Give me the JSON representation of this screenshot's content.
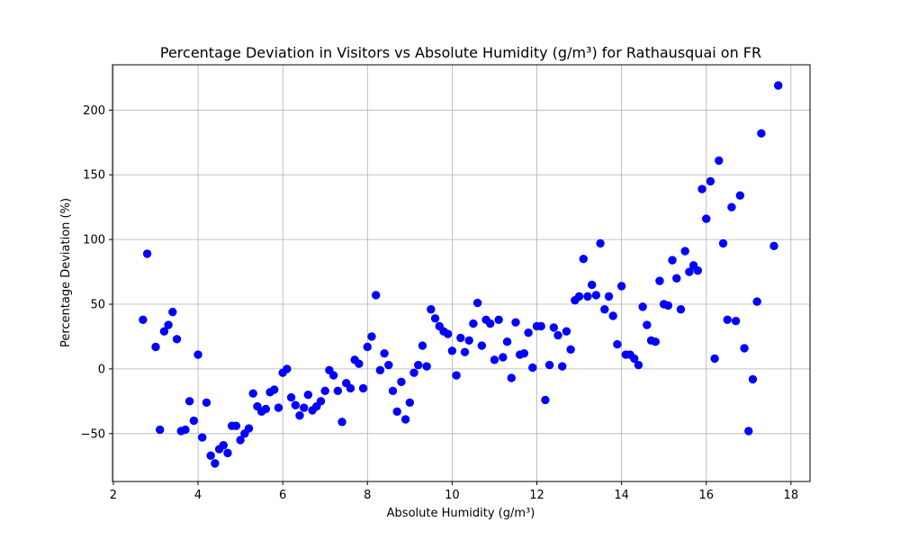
{
  "chart_data": {
    "type": "scatter",
    "title": "Percentage Deviation in Visitors vs Absolute Humidity (g/m³) for Rathausquai on FR",
    "xlabel": "Absolute Humidity (g/m³)",
    "ylabel": "Percentage Deviation (%)",
    "xlim": [
      1.98,
      18.45
    ],
    "ylim": [
      -87,
      235
    ],
    "xticks": [
      2,
      4,
      6,
      8,
      10,
      12,
      14,
      16,
      18
    ],
    "yticks": [
      -50,
      0,
      50,
      100,
      150,
      200
    ],
    "grid": true,
    "point_color": "#0000ff",
    "points": [
      [
        2.7,
        38
      ],
      [
        2.8,
        89
      ],
      [
        3.0,
        17
      ],
      [
        3.1,
        -47
      ],
      [
        3.2,
        29
      ],
      [
        3.3,
        34
      ],
      [
        3.4,
        44
      ],
      [
        3.5,
        23
      ],
      [
        3.6,
        -48
      ],
      [
        3.7,
        -47
      ],
      [
        3.8,
        -25
      ],
      [
        3.9,
        -40
      ],
      [
        4.0,
        11
      ],
      [
        4.1,
        -53
      ],
      [
        4.2,
        -26
      ],
      [
        4.3,
        -67
      ],
      [
        4.4,
        -73
      ],
      [
        4.5,
        -62
      ],
      [
        4.6,
        -59
      ],
      [
        4.7,
        -65
      ],
      [
        4.8,
        -44
      ],
      [
        4.9,
        -44
      ],
      [
        5.0,
        -55
      ],
      [
        5.1,
        -50
      ],
      [
        5.2,
        -46
      ],
      [
        5.3,
        -19
      ],
      [
        5.4,
        -29
      ],
      [
        5.5,
        -33
      ],
      [
        5.6,
        -31
      ],
      [
        5.7,
        -18
      ],
      [
        5.8,
        -16
      ],
      [
        5.9,
        -30
      ],
      [
        6.0,
        -3
      ],
      [
        6.1,
        0
      ],
      [
        6.2,
        -22
      ],
      [
        6.3,
        -28
      ],
      [
        6.4,
        -36
      ],
      [
        6.5,
        -30
      ],
      [
        6.6,
        -20
      ],
      [
        6.7,
        -32
      ],
      [
        6.8,
        -29
      ],
      [
        6.9,
        -25
      ],
      [
        7.0,
        -17
      ],
      [
        7.1,
        -1
      ],
      [
        7.2,
        -5
      ],
      [
        7.3,
        -17
      ],
      [
        7.4,
        -41
      ],
      [
        7.5,
        -11
      ],
      [
        7.6,
        -15
      ],
      [
        7.7,
        7
      ],
      [
        7.8,
        4
      ],
      [
        7.9,
        -15
      ],
      [
        8.0,
        17
      ],
      [
        8.1,
        25
      ],
      [
        8.2,
        57
      ],
      [
        8.3,
        -1
      ],
      [
        8.4,
        12
      ],
      [
        8.5,
        3
      ],
      [
        8.6,
        -17
      ],
      [
        8.7,
        -33
      ],
      [
        8.8,
        -10
      ],
      [
        8.9,
        -39
      ],
      [
        9.0,
        -26
      ],
      [
        9.1,
        -3
      ],
      [
        9.2,
        3
      ],
      [
        9.3,
        18
      ],
      [
        9.4,
        2
      ],
      [
        9.5,
        46
      ],
      [
        9.6,
        39
      ],
      [
        9.7,
        33
      ],
      [
        9.8,
        29
      ],
      [
        9.9,
        27
      ],
      [
        10.0,
        14
      ],
      [
        10.1,
        -5
      ],
      [
        10.2,
        24
      ],
      [
        10.3,
        13
      ],
      [
        10.4,
        22
      ],
      [
        10.5,
        35
      ],
      [
        10.6,
        51
      ],
      [
        10.7,
        18
      ],
      [
        10.8,
        38
      ],
      [
        10.9,
        35
      ],
      [
        11.0,
        7
      ],
      [
        11.1,
        38
      ],
      [
        11.2,
        9
      ],
      [
        11.3,
        21
      ],
      [
        11.4,
        -7
      ],
      [
        11.5,
        36
      ],
      [
        11.6,
        11
      ],
      [
        11.7,
        12
      ],
      [
        11.8,
        28
      ],
      [
        11.9,
        1
      ],
      [
        12.0,
        33
      ],
      [
        12.1,
        33
      ],
      [
        12.2,
        -24
      ],
      [
        12.3,
        3
      ],
      [
        12.4,
        32
      ],
      [
        12.5,
        26
      ],
      [
        12.6,
        2
      ],
      [
        12.7,
        29
      ],
      [
        12.8,
        15
      ],
      [
        12.9,
        53
      ],
      [
        13.0,
        56
      ],
      [
        13.1,
        85
      ],
      [
        13.2,
        56
      ],
      [
        13.3,
        65
      ],
      [
        13.4,
        57
      ],
      [
        13.5,
        97
      ],
      [
        13.6,
        46
      ],
      [
        13.7,
        56
      ],
      [
        13.8,
        41
      ],
      [
        13.9,
        19
      ],
      [
        14.0,
        64
      ],
      [
        14.1,
        11
      ],
      [
        14.2,
        11
      ],
      [
        14.3,
        8
      ],
      [
        14.4,
        3
      ],
      [
        14.5,
        48
      ],
      [
        14.6,
        34
      ],
      [
        14.7,
        22
      ],
      [
        14.8,
        21
      ],
      [
        14.9,
        68
      ],
      [
        15.0,
        50
      ],
      [
        15.1,
        49
      ],
      [
        15.2,
        84
      ],
      [
        15.3,
        70
      ],
      [
        15.4,
        46
      ],
      [
        15.5,
        91
      ],
      [
        15.6,
        75
      ],
      [
        15.7,
        80
      ],
      [
        15.8,
        76
      ],
      [
        15.9,
        139
      ],
      [
        16.0,
        116
      ],
      [
        16.1,
        145
      ],
      [
        16.2,
        8
      ],
      [
        16.3,
        161
      ],
      [
        16.4,
        97
      ],
      [
        16.5,
        38
      ],
      [
        16.6,
        125
      ],
      [
        16.7,
        37
      ],
      [
        16.8,
        134
      ],
      [
        16.9,
        16
      ],
      [
        17.0,
        -48
      ],
      [
        17.1,
        -8
      ],
      [
        17.2,
        52
      ],
      [
        17.3,
        182
      ],
      [
        17.6,
        95
      ],
      [
        17.7,
        219
      ]
    ]
  }
}
